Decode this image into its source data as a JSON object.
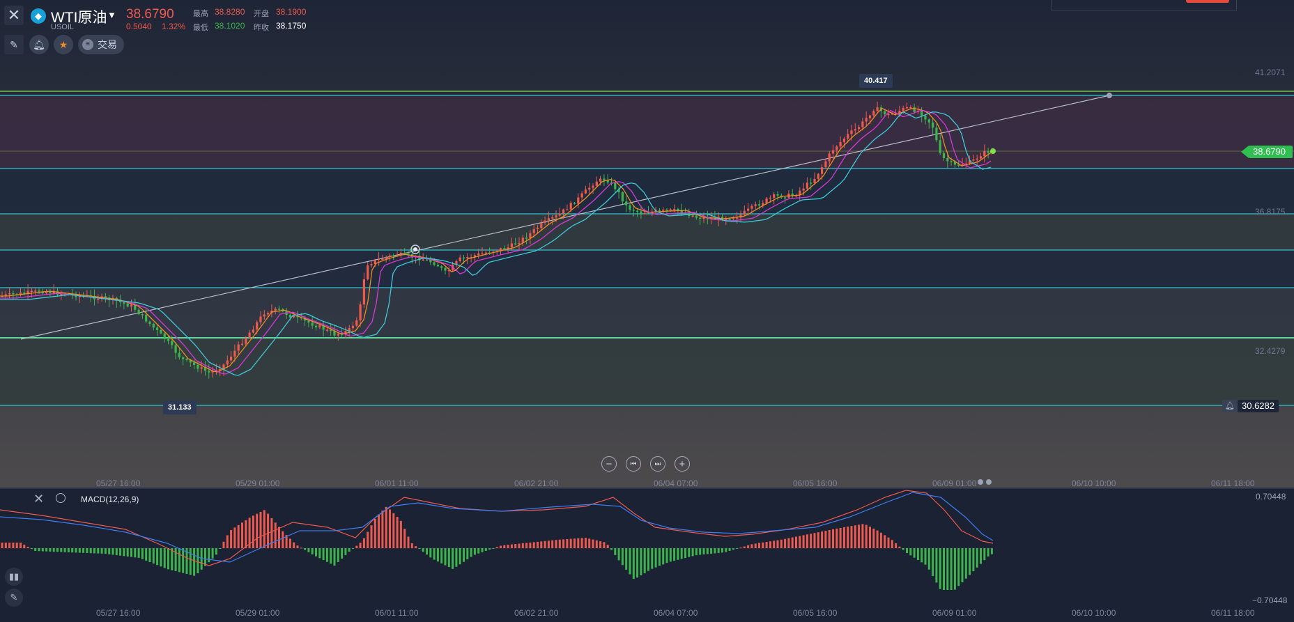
{
  "header": {
    "close_icon": "close-icon",
    "symbol_name": "WTI原油",
    "symbol_code": "USOIL",
    "last_price": "38.6790",
    "change": "0.5040",
    "change_pct": "1.32%",
    "high_label": "最高",
    "high_value": "38.8280",
    "open_label": "开盘",
    "open_value": "38.1900",
    "low_label": "最低",
    "low_value": "38.1020",
    "prev_close_label": "昨收",
    "prev_close_value": "38.1750",
    "trade_label": "交易"
  },
  "toolbar": {
    "draw_icon": "draw-tool-icon",
    "alert_icon": "bell-icon",
    "favorite_icon": "star-icon",
    "trade_icon": "list-icon"
  },
  "price_axis": {
    "labels": [
      "41.2071",
      "36.8175",
      "32.4279"
    ],
    "current_price": "38.6790",
    "alert_price": "30.6282"
  },
  "markers": {
    "high": "40.417",
    "low": "31.133"
  },
  "time_axis": {
    "labels": [
      "05/27 16:00",
      "05/29 01:00",
      "06/01 11:00",
      "06/02 21:00",
      "06/04 07:00",
      "06/05 16:00",
      "06/09 01:00",
      "06/10 10:00",
      "06/11 18:00"
    ]
  },
  "nav": {
    "zoom_out": "−",
    "prev": "⏮",
    "next": "⏭",
    "zoom_in": "+"
  },
  "macd": {
    "title": "MACD(12,26,9)",
    "max_label": "0.70448",
    "min_label": "−0.70448"
  },
  "colors": {
    "up": "#ef5a4e",
    "down": "#3cb54a",
    "ma_fast": "#f08a24",
    "ma_mid": "#d63ad6",
    "ma_slow": "#3fc8d8",
    "hline": "#33c4d6",
    "green_line": "#7ee04a",
    "macd_line": "#3f7df0",
    "signal_line": "#ef5a4e",
    "current_price_bg": "#2fbe4f"
  }
}
